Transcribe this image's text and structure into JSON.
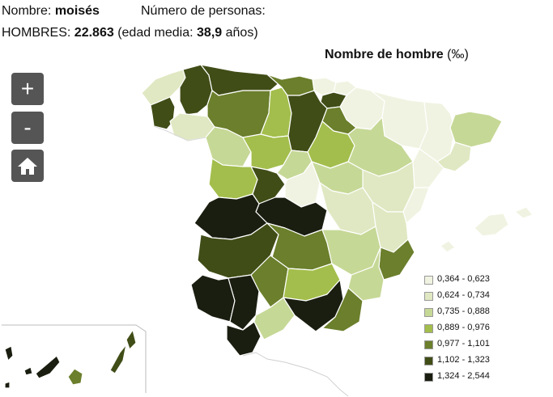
{
  "header": {
    "name_label": "Nombre:",
    "name_value": "moisés",
    "persons_label": "Número de personas:",
    "men_label": "HOMBRES:",
    "men_value": "22.863",
    "age_prefix": "(edad media:",
    "age_value": "38,9",
    "age_suffix": "años)"
  },
  "map": {
    "title": "Nombre de hombre",
    "unit": "(‰)"
  },
  "controls": {
    "zoom_in": "+",
    "zoom_out": "-",
    "home_icon": "home-icon"
  },
  "legend": {
    "items": [
      {
        "label": "0,364 - 0,623",
        "color": "#f1f3e2"
      },
      {
        "label": "0,624 - 0,734",
        "color": "#dfe8c2"
      },
      {
        "label": "0,735 - 0,888",
        "color": "#c6d896"
      },
      {
        "label": "0,889 - 0,976",
        "color": "#a3be4c"
      },
      {
        "label": "0,977 - 1,101",
        "color": "#6b7f2c"
      },
      {
        "label": "1,102 - 1,323",
        "color": "#404d17"
      },
      {
        "label": "1,324 - 2,544",
        "color": "#1a1e10"
      }
    ]
  }
}
